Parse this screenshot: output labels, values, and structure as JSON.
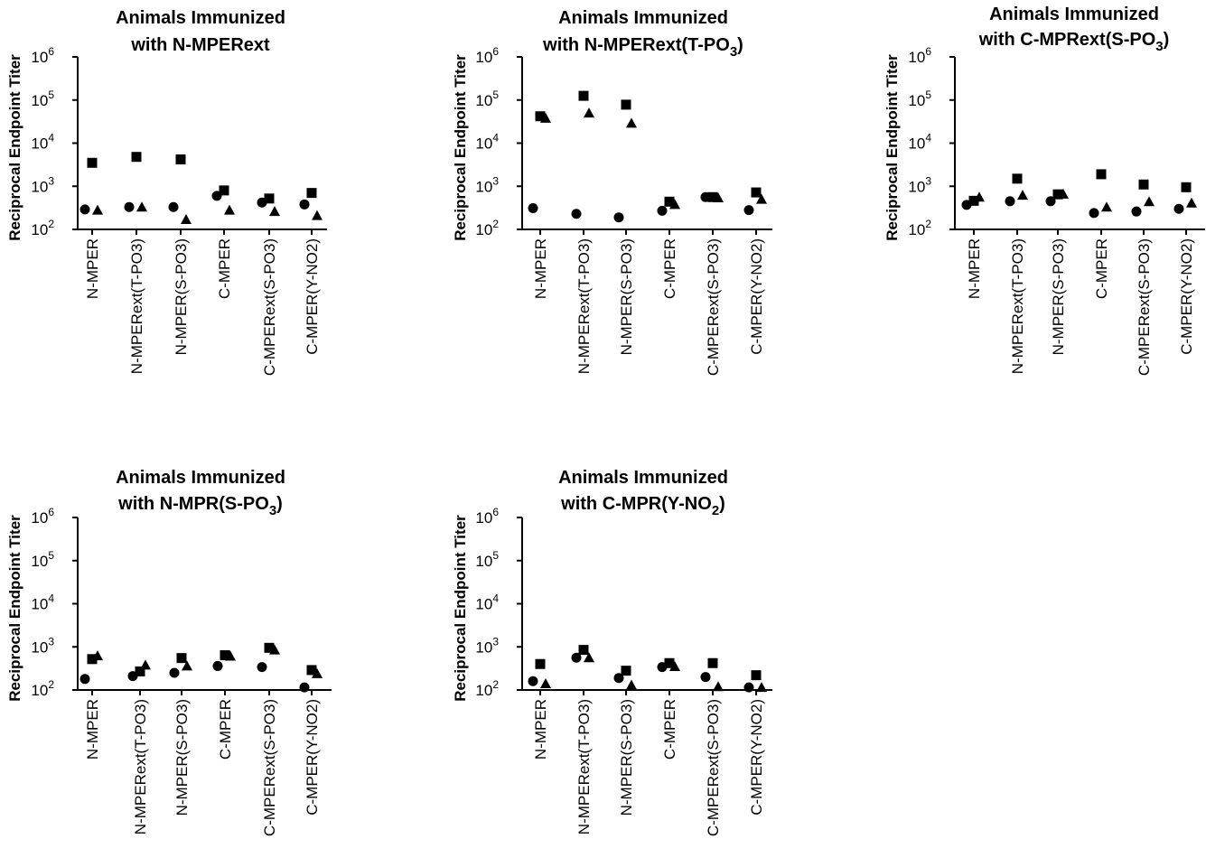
{
  "chart_data": [
    {
      "type": "scatter",
      "title_line1": "Animals Immunized",
      "title_line2": "with N-MPERext",
      "title_sub": "",
      "title_tail": "",
      "ylabel": "Reciprocal Endpoint Titer",
      "yscale": "log",
      "ylim": [
        100,
        1000000
      ],
      "yticks": [
        {
          "base": "10",
          "exp": "2"
        },
        {
          "base": "10",
          "exp": "3"
        },
        {
          "base": "10",
          "exp": "4"
        },
        {
          "base": "10",
          "exp": "5"
        },
        {
          "base": "10",
          "exp": "6"
        }
      ],
      "categories": [
        "N-MPER",
        "N-MPERext(T-PO3)",
        "N-MPER(S-PO3)",
        "C-MPER",
        "C-MPERext(S-PO3)",
        "C-MPER(Y-NO2)"
      ],
      "series": [
        {
          "marker": "circle",
          "values": [
            290,
            330,
            330,
            600,
            420,
            380
          ]
        },
        {
          "marker": "square",
          "values": [
            3500,
            4800,
            4200,
            800,
            520,
            700
          ]
        },
        {
          "marker": "triangle",
          "values": [
            280,
            330,
            170,
            280,
            260,
            210
          ]
        }
      ]
    },
    {
      "type": "scatter",
      "title_line1": "Animals Immunized",
      "title_line2": "with N-MPERext(T-PO",
      "title_sub": "3",
      "title_tail": ")",
      "ylabel": "Reciprocal Endpoint Titer",
      "yscale": "log",
      "ylim": [
        100,
        1000000
      ],
      "yticks": [
        {
          "base": "10",
          "exp": "2"
        },
        {
          "base": "10",
          "exp": "3"
        },
        {
          "base": "10",
          "exp": "4"
        },
        {
          "base": "10",
          "exp": "5"
        },
        {
          "base": "10",
          "exp": "6"
        }
      ],
      "categories": [
        "N-MPER",
        "N-MPERext(T-PO3)",
        "N-MPER(S-PO3)",
        "C-MPER",
        "C-MPERext(S-PO3)",
        "C-MPER(Y-NO2)"
      ],
      "series": [
        {
          "marker": "circle",
          "values": [
            310,
            230,
            190,
            270,
            560,
            280
          ]
        },
        {
          "marker": "square",
          "values": [
            42000,
            125000,
            78000,
            440,
            560,
            720
          ]
        },
        {
          "marker": "triangle",
          "values": [
            38000,
            50000,
            29000,
            380,
            540,
            500
          ]
        }
      ]
    },
    {
      "type": "scatter",
      "title_line1": "Animals Immunized",
      "title_line2": "with C-MPRext(S-PO",
      "title_sub": "3",
      "title_tail": ")",
      "ylabel": "Reciprocal Endpoint Titer",
      "yscale": "log",
      "ylim": [
        100,
        1000000
      ],
      "yticks": [
        {
          "base": "10",
          "exp": "2"
        },
        {
          "base": "10",
          "exp": "3"
        },
        {
          "base": "10",
          "exp": "4"
        },
        {
          "base": "10",
          "exp": "5"
        },
        {
          "base": "10",
          "exp": "6"
        }
      ],
      "categories": [
        "N-MPER",
        "N-MPERext(T-PO3)",
        "N-MPER(S-PO3)",
        "C-MPER",
        "C-MPERext(S-PO3)",
        "C-MPER(Y-NO2)"
      ],
      "series": [
        {
          "marker": "circle",
          "values": [
            370,
            450,
            450,
            240,
            260,
            300
          ]
        },
        {
          "marker": "square",
          "values": [
            460,
            1500,
            650,
            1900,
            1100,
            950
          ]
        },
        {
          "marker": "triangle",
          "values": [
            560,
            620,
            660,
            330,
            440,
            410
          ]
        }
      ]
    },
    {
      "type": "scatter",
      "title_line1": "Animals Immunized",
      "title_line2": "with N-MPR(S-PO",
      "title_sub": "3",
      "title_tail": ")",
      "ylabel": "Reciprocal Endpoint Titer",
      "yscale": "log",
      "ylim": [
        100,
        1000000
      ],
      "yticks": [
        {
          "base": "10",
          "exp": "2"
        },
        {
          "base": "10",
          "exp": "3"
        },
        {
          "base": "10",
          "exp": "4"
        },
        {
          "base": "10",
          "exp": "5"
        },
        {
          "base": "10",
          "exp": "6"
        }
      ],
      "categories": [
        "N-MPER",
        "N-MPERext(T-PO3)",
        "N-MPER(S-PO3)",
        "C-MPER",
        "C-MPERext(S-PO3)",
        "C-MPER(Y-NO2)"
      ],
      "series": [
        {
          "marker": "circle",
          "values": [
            180,
            210,
            250,
            360,
            340,
            115
          ]
        },
        {
          "marker": "square",
          "values": [
            520,
            270,
            550,
            640,
            950,
            290
          ]
        },
        {
          "marker": "triangle",
          "values": [
            620,
            380,
            360,
            610,
            850,
            240
          ]
        }
      ]
    },
    {
      "type": "scatter",
      "title_line1": "Animals Immunized",
      "title_line2": "with C-MPR(Y-NO",
      "title_sub": "2",
      "title_tail": ")",
      "ylabel": "Reciprocal Endpoint Titer",
      "yscale": "log",
      "ylim": [
        100,
        1000000
      ],
      "yticks": [
        {
          "base": "10",
          "exp": "2"
        },
        {
          "base": "10",
          "exp": "3"
        },
        {
          "base": "10",
          "exp": "4"
        },
        {
          "base": "10",
          "exp": "5"
        },
        {
          "base": "10",
          "exp": "6"
        }
      ],
      "categories": [
        "N-MPER",
        "N-MPERext(T-PO3)",
        "N-MPER(S-PO3)",
        "C-MPER",
        "C-MPERext(S-PO3)",
        "C-MPER(Y-NO2)"
      ],
      "series": [
        {
          "marker": "circle",
          "values": [
            160,
            560,
            190,
            340,
            200,
            115
          ]
        },
        {
          "marker": "square",
          "values": [
            400,
            850,
            280,
            420,
            420,
            220
          ]
        },
        {
          "marker": "triangle",
          "values": [
            140,
            560,
            130,
            350,
            120,
            115
          ]
        }
      ]
    }
  ]
}
